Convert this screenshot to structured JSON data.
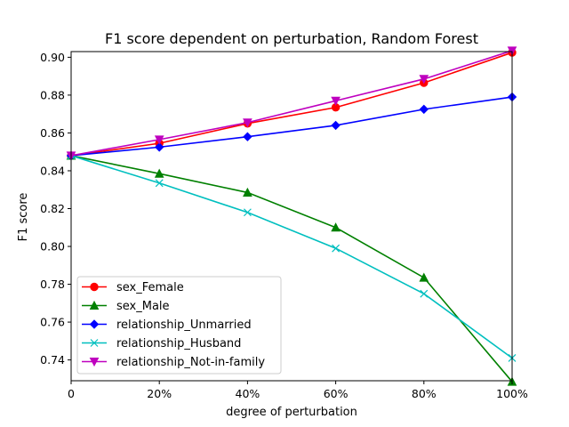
{
  "chart_data": {
    "type": "line",
    "title": "F1 score dependent on perturbation, Random Forest",
    "xlabel": "degree of perturbation",
    "ylabel": "F1 score",
    "categories": [
      "0",
      "20%",
      "40%",
      "60%",
      "80%",
      "100%"
    ],
    "x": [
      0,
      20,
      40,
      60,
      80,
      100
    ],
    "xlim": [
      0,
      100
    ],
    "ylim": [
      0.729,
      0.903
    ],
    "yticks": [
      0.74,
      0.76,
      0.78,
      0.8,
      0.82,
      0.84,
      0.86,
      0.88,
      0.9
    ],
    "ytick_labels": [
      "0.74",
      "0.76",
      "0.78",
      "0.80",
      "0.82",
      "0.84",
      "0.86",
      "0.88",
      "0.90"
    ],
    "grid": false,
    "legend_position": "lower-left",
    "series": [
      {
        "name": "sex_Female",
        "color": "#ff0000",
        "marker": "circle",
        "values": [
          0.848,
          0.8545,
          0.865,
          0.8735,
          0.8865,
          0.9025
        ]
      },
      {
        "name": "sex_Male",
        "color": "#008000",
        "marker": "triangle-up",
        "values": [
          0.848,
          0.8385,
          0.8285,
          0.81,
          0.7835,
          0.7285
        ]
      },
      {
        "name": "relationship_Unmarried",
        "color": "#0000ff",
        "marker": "diamond",
        "values": [
          0.848,
          0.8525,
          0.858,
          0.864,
          0.8725,
          0.879
        ]
      },
      {
        "name": "relationship_Husband",
        "color": "#00bfbf",
        "marker": "x",
        "values": [
          0.848,
          0.8335,
          0.818,
          0.799,
          0.775,
          0.741
        ]
      },
      {
        "name": "relationship_Not-in-family",
        "color": "#bf00bf",
        "marker": "triangle-down",
        "values": [
          0.848,
          0.8565,
          0.8655,
          0.877,
          0.8885,
          0.9035
        ]
      }
    ]
  }
}
